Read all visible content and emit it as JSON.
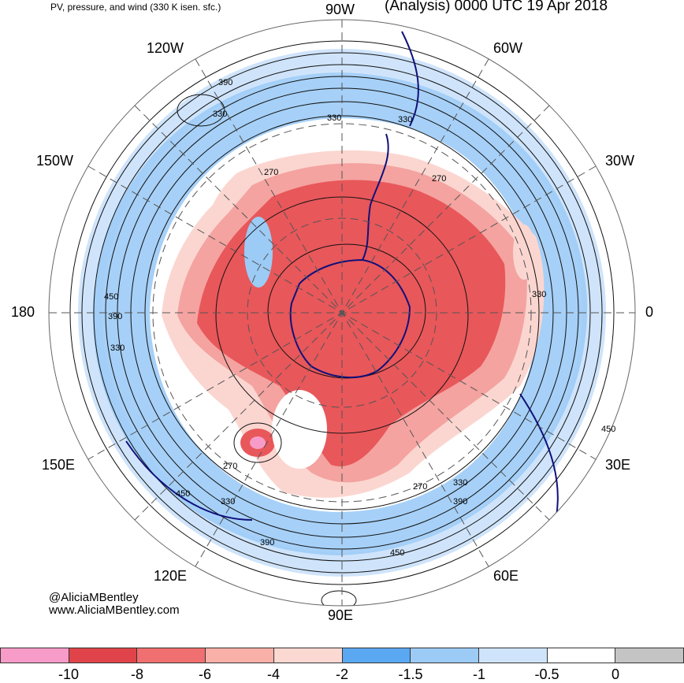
{
  "header": {
    "title_left": "PV, pressure, and wind (330 K isen. sfc.)",
    "title_right": "(Analysis) 0000 UTC 19 Apr 2018"
  },
  "longitude_labels": {
    "lon_90w": "90W",
    "lon_60w": "60W",
    "lon_120w": "120W",
    "lon_150w": "150W",
    "lon_30w": "30W",
    "lon_180": "180",
    "lon_0": "0",
    "lon_150e": "150E",
    "lon_30e": "30E",
    "lon_120e": "120E",
    "lon_60e": "60E",
    "lon_90e": "90E"
  },
  "contour_labels": [
    "390",
    "330",
    "330",
    "330",
    "270",
    "270",
    "450",
    "390",
    "330",
    "330",
    "270",
    "450",
    "330",
    "270",
    "330",
    "390",
    "390",
    "450",
    "450"
  ],
  "credits": {
    "handle": "@AliciaMBentley",
    "website": "www.AliciaMBentley.com"
  },
  "colorbar": {
    "colors": [
      "#f79cc8",
      "#e0444a",
      "#f06f70",
      "#f8b0a8",
      "#fbd8d2",
      "#5aa8f2",
      "#9ccbf6",
      "#cfe4fb",
      "#ffffff",
      "#c4c4c4"
    ],
    "ticks": [
      "-10",
      "-8",
      "-6",
      "-4",
      "-2",
      "-1.5",
      "-1",
      "-0.5",
      "0"
    ]
  },
  "map_colors": {
    "ocean": "#ffffff",
    "negative_pv_core": "#e8575a",
    "negative_pv_mid": "#f4a3a0",
    "negative_pv_edge": "#fbd6d0",
    "jet_blue": "#9ccbf6",
    "jet_blue_light": "#cfe4fb",
    "coastline": "#10107a",
    "contour": "#111111",
    "graticule": "#555555"
  }
}
